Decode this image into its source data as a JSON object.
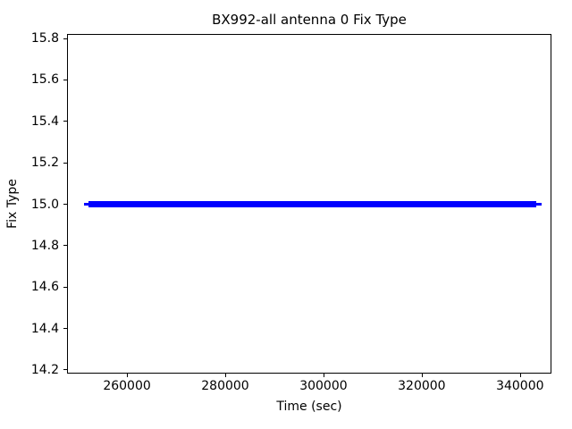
{
  "chart_data": {
    "type": "line",
    "title": "BX992-all antenna 0 Fix Type",
    "xlabel": "Time (sec)",
    "ylabel": "Fix Type",
    "xlim": [
      247800,
      346400
    ],
    "ylim": [
      14.18,
      15.82
    ],
    "grid": false,
    "legend": null,
    "xticks": {
      "values": [
        260000,
        280000,
        300000,
        320000,
        340000
      ],
      "labels": [
        "260000",
        "280000",
        "300000",
        "320000",
        "340000"
      ]
    },
    "yticks": {
      "values": [
        14.2,
        14.4,
        14.6,
        14.8,
        15.0,
        15.2,
        15.4,
        15.6,
        15.8
      ],
      "labels": [
        "14.2",
        "14.4",
        "14.6",
        "14.8",
        "15.0",
        "15.2",
        "15.4",
        "15.6",
        "15.8"
      ]
    },
    "series": [
      {
        "name": "antenna 0 fix type",
        "color": "#0000ff",
        "y_value": 15.0,
        "x_start": 251300,
        "x_end": 344400,
        "dense_start": 252200,
        "dense_end": 343300,
        "description": "constant fix type 15 from ~251300 s to ~344400 s; dense overlapping markers form a thick bar with single thin markers at each end"
      }
    ]
  }
}
